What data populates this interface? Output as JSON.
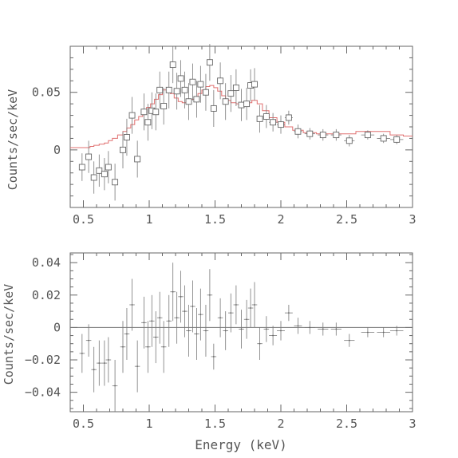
{
  "chart_data": [
    {
      "type": "scatter",
      "panel": "spectrum",
      "xlabel": "",
      "ylabel": "Counts/sec/keV",
      "xlim": [
        0.4,
        3.0
      ],
      "ylim": [
        -0.05,
        0.09
      ],
      "xticks": [
        0.5,
        1,
        1.5,
        2,
        2.5,
        3
      ],
      "xtick_labels": [
        "0.5",
        "1",
        "1.5",
        "2",
        "2.5",
        "3"
      ],
      "yticks": [
        0,
        0.05
      ],
      "ytick_labels": [
        "0",
        "0.05"
      ],
      "points": [
        {
          "x": 0.49,
          "y": -0.015,
          "xerr": 0.02,
          "yerr": 0.012
        },
        {
          "x": 0.54,
          "y": -0.006,
          "xerr": 0.02,
          "yerr": 0.014
        },
        {
          "x": 0.58,
          "y": -0.024,
          "xerr": 0.02,
          "yerr": 0.014
        },
        {
          "x": 0.62,
          "y": -0.018,
          "xerr": 0.02,
          "yerr": 0.014
        },
        {
          "x": 0.66,
          "y": -0.021,
          "xerr": 0.02,
          "yerr": 0.014
        },
        {
          "x": 0.69,
          "y": -0.015,
          "xerr": 0.02,
          "yerr": 0.014
        },
        {
          "x": 0.74,
          "y": -0.028,
          "xerr": 0.02,
          "yerr": 0.016
        },
        {
          "x": 0.8,
          "y": 0.0,
          "xerr": 0.02,
          "yerr": 0.016
        },
        {
          "x": 0.83,
          "y": 0.011,
          "xerr": 0.02,
          "yerr": 0.016
        },
        {
          "x": 0.87,
          "y": 0.03,
          "xerr": 0.02,
          "yerr": 0.016
        },
        {
          "x": 0.91,
          "y": -0.008,
          "xerr": 0.02,
          "yerr": 0.016
        },
        {
          "x": 0.96,
          "y": 0.033,
          "xerr": 0.02,
          "yerr": 0.016
        },
        {
          "x": 0.99,
          "y": 0.024,
          "xerr": 0.02,
          "yerr": 0.016
        },
        {
          "x": 1.02,
          "y": 0.034,
          "xerr": 0.02,
          "yerr": 0.016
        },
        {
          "x": 1.05,
          "y": 0.033,
          "xerr": 0.02,
          "yerr": 0.016
        },
        {
          "x": 1.08,
          "y": 0.052,
          "xerr": 0.02,
          "yerr": 0.016
        },
        {
          "x": 1.11,
          "y": 0.038,
          "xerr": 0.02,
          "yerr": 0.016
        },
        {
          "x": 1.15,
          "y": 0.052,
          "xerr": 0.02,
          "yerr": 0.016
        },
        {
          "x": 1.18,
          "y": 0.074,
          "xerr": 0.02,
          "yerr": 0.016
        },
        {
          "x": 1.21,
          "y": 0.051,
          "xerr": 0.02,
          "yerr": 0.016
        },
        {
          "x": 1.24,
          "y": 0.062,
          "xerr": 0.02,
          "yerr": 0.016
        },
        {
          "x": 1.27,
          "y": 0.052,
          "xerr": 0.02,
          "yerr": 0.016
        },
        {
          "x": 1.3,
          "y": 0.042,
          "xerr": 0.02,
          "yerr": 0.016
        },
        {
          "x": 1.33,
          "y": 0.059,
          "xerr": 0.02,
          "yerr": 0.016
        },
        {
          "x": 1.36,
          "y": 0.044,
          "xerr": 0.02,
          "yerr": 0.016
        },
        {
          "x": 1.39,
          "y": 0.057,
          "xerr": 0.02,
          "yerr": 0.016
        },
        {
          "x": 1.43,
          "y": 0.05,
          "xerr": 0.02,
          "yerr": 0.016
        },
        {
          "x": 1.46,
          "y": 0.076,
          "xerr": 0.02,
          "yerr": 0.016
        },
        {
          "x": 1.49,
          "y": 0.036,
          "xerr": 0.02,
          "yerr": 0.016
        },
        {
          "x": 1.54,
          "y": 0.06,
          "xerr": 0.02,
          "yerr": 0.016
        },
        {
          "x": 1.58,
          "y": 0.042,
          "xerr": 0.02,
          "yerr": 0.016
        },
        {
          "x": 1.62,
          "y": 0.049,
          "xerr": 0.02,
          "yerr": 0.016
        },
        {
          "x": 1.66,
          "y": 0.054,
          "xerr": 0.02,
          "yerr": 0.016
        },
        {
          "x": 1.7,
          "y": 0.039,
          "xerr": 0.02,
          "yerr": 0.014
        },
        {
          "x": 1.74,
          "y": 0.04,
          "xerr": 0.02,
          "yerr": 0.014
        },
        {
          "x": 1.77,
          "y": 0.056,
          "xerr": 0.02,
          "yerr": 0.014
        },
        {
          "x": 1.8,
          "y": 0.057,
          "xerr": 0.02,
          "yerr": 0.014
        },
        {
          "x": 1.84,
          "y": 0.027,
          "xerr": 0.02,
          "yerr": 0.012
        },
        {
          "x": 1.89,
          "y": 0.029,
          "xerr": 0.02,
          "yerr": 0.01
        },
        {
          "x": 1.94,
          "y": 0.024,
          "xerr": 0.03,
          "yerr": 0.008
        },
        {
          "x": 2.0,
          "y": 0.022,
          "xerr": 0.03,
          "yerr": 0.008
        },
        {
          "x": 2.06,
          "y": 0.028,
          "xerr": 0.03,
          "yerr": 0.006
        },
        {
          "x": 2.13,
          "y": 0.016,
          "xerr": 0.03,
          "yerr": 0.006
        },
        {
          "x": 2.22,
          "y": 0.014,
          "xerr": 0.04,
          "yerr": 0.005
        },
        {
          "x": 2.32,
          "y": 0.013,
          "xerr": 0.04,
          "yerr": 0.005
        },
        {
          "x": 2.42,
          "y": 0.013,
          "xerr": 0.04,
          "yerr": 0.005
        },
        {
          "x": 2.52,
          "y": 0.008,
          "xerr": 0.04,
          "yerr": 0.005
        },
        {
          "x": 2.66,
          "y": 0.013,
          "xerr": 0.05,
          "yerr": 0.004
        },
        {
          "x": 2.78,
          "y": 0.01,
          "xerr": 0.05,
          "yerr": 0.004
        },
        {
          "x": 2.88,
          "y": 0.009,
          "xerr": 0.05,
          "yerr": 0.004
        }
      ],
      "model": {
        "color": "#e07070",
        "x": [
          0.4,
          0.55,
          0.58,
          0.62,
          0.66,
          0.69,
          0.72,
          0.76,
          0.8,
          0.83,
          0.86,
          0.89,
          0.92,
          0.95,
          0.98,
          1.01,
          1.04,
          1.07,
          1.1,
          1.13,
          1.16,
          1.19,
          1.22,
          1.25,
          1.28,
          1.31,
          1.34,
          1.37,
          1.4,
          1.43,
          1.46,
          1.49,
          1.52,
          1.55,
          1.58,
          1.62,
          1.66,
          1.7,
          1.74,
          1.78,
          1.82,
          1.86,
          1.91,
          1.97,
          2.03,
          2.09,
          2.17,
          2.27,
          2.37,
          2.47,
          2.57,
          2.72,
          2.83,
          2.93,
          3.0
        ],
        "y": [
          0.002,
          0.003,
          0.004,
          0.005,
          0.006,
          0.008,
          0.01,
          0.013,
          0.016,
          0.019,
          0.022,
          0.026,
          0.029,
          0.033,
          0.037,
          0.04,
          0.044,
          0.048,
          0.052,
          0.053,
          0.049,
          0.045,
          0.042,
          0.041,
          0.042,
          0.044,
          0.046,
          0.049,
          0.052,
          0.055,
          0.056,
          0.054,
          0.051,
          0.047,
          0.043,
          0.041,
          0.04,
          0.04,
          0.041,
          0.043,
          0.04,
          0.034,
          0.028,
          0.024,
          0.02,
          0.017,
          0.015,
          0.014,
          0.014,
          0.014,
          0.016,
          0.016,
          0.013,
          0.012,
          0.012
        ]
      }
    },
    {
      "type": "scatter",
      "panel": "residuals",
      "xlabel": "Energy (keV)",
      "ylabel": "Counts/sec/keV",
      "xlim": [
        0.4,
        3.0
      ],
      "ylim": [
        -0.052,
        0.046
      ],
      "xticks": [
        0.5,
        1,
        1.5,
        2,
        2.5,
        3
      ],
      "xtick_labels": [
        "0.5",
        "1",
        "1.5",
        "2",
        "2.5",
        "3"
      ],
      "yticks": [
        -0.04,
        -0.02,
        0,
        0.02,
        0.04
      ],
      "ytick_labels": [
        "−0.04",
        "−0.02",
        "0",
        "0.02",
        "0.04"
      ],
      "zero_line": true,
      "points": [
        {
          "x": 0.49,
          "y": -0.016,
          "xerr": 0.02,
          "yerr": 0.012
        },
        {
          "x": 0.54,
          "y": -0.008,
          "xerr": 0.02,
          "yerr": 0.01
        },
        {
          "x": 0.58,
          "y": -0.026,
          "xerr": 0.02,
          "yerr": 0.014
        },
        {
          "x": 0.62,
          "y": -0.022,
          "xerr": 0.02,
          "yerr": 0.014
        },
        {
          "x": 0.66,
          "y": -0.022,
          "xerr": 0.02,
          "yerr": 0.014
        },
        {
          "x": 0.69,
          "y": -0.02,
          "xerr": 0.02,
          "yerr": 0.014
        },
        {
          "x": 0.74,
          "y": -0.036,
          "xerr": 0.02,
          "yerr": 0.016
        },
        {
          "x": 0.8,
          "y": -0.012,
          "xerr": 0.02,
          "yerr": 0.016
        },
        {
          "x": 0.83,
          "y": -0.004,
          "xerr": 0.02,
          "yerr": 0.016
        },
        {
          "x": 0.87,
          "y": 0.014,
          "xerr": 0.02,
          "yerr": 0.016
        },
        {
          "x": 0.91,
          "y": -0.024,
          "xerr": 0.02,
          "yerr": 0.016
        },
        {
          "x": 0.96,
          "y": 0.003,
          "xerr": 0.02,
          "yerr": 0.016
        },
        {
          "x": 0.99,
          "y": -0.012,
          "xerr": 0.02,
          "yerr": 0.016
        },
        {
          "x": 1.02,
          "y": 0.004,
          "xerr": 0.02,
          "yerr": 0.016
        },
        {
          "x": 1.05,
          "y": -0.006,
          "xerr": 0.02,
          "yerr": 0.016
        },
        {
          "x": 1.08,
          "y": 0.006,
          "xerr": 0.02,
          "yerr": 0.016
        },
        {
          "x": 1.11,
          "y": -0.012,
          "xerr": 0.02,
          "yerr": 0.016
        },
        {
          "x": 1.15,
          "y": 0.004,
          "xerr": 0.02,
          "yerr": 0.016
        },
        {
          "x": 1.18,
          "y": 0.022,
          "xerr": 0.02,
          "yerr": 0.018
        },
        {
          "x": 1.21,
          "y": 0.006,
          "xerr": 0.02,
          "yerr": 0.016
        },
        {
          "x": 1.24,
          "y": 0.019,
          "xerr": 0.02,
          "yerr": 0.016
        },
        {
          "x": 1.27,
          "y": 0.01,
          "xerr": 0.02,
          "yerr": 0.016
        },
        {
          "x": 1.3,
          "y": -0.002,
          "xerr": 0.02,
          "yerr": 0.016
        },
        {
          "x": 1.33,
          "y": 0.013,
          "xerr": 0.02,
          "yerr": 0.016
        },
        {
          "x": 1.36,
          "y": -0.004,
          "xerr": 0.02,
          "yerr": 0.016
        },
        {
          "x": 1.39,
          "y": 0.008,
          "xerr": 0.02,
          "yerr": 0.016
        },
        {
          "x": 1.43,
          "y": -0.002,
          "xerr": 0.02,
          "yerr": 0.016
        },
        {
          "x": 1.46,
          "y": 0.02,
          "xerr": 0.02,
          "yerr": 0.016
        },
        {
          "x": 1.49,
          "y": -0.018,
          "xerr": 0.02,
          "yerr": 0.008
        },
        {
          "x": 1.54,
          "y": 0.006,
          "xerr": 0.02,
          "yerr": 0.012
        },
        {
          "x": 1.58,
          "y": -0.002,
          "xerr": 0.02,
          "yerr": 0.012
        },
        {
          "x": 1.62,
          "y": 0.009,
          "xerr": 0.02,
          "yerr": 0.012
        },
        {
          "x": 1.66,
          "y": 0.014,
          "xerr": 0.02,
          "yerr": 0.012
        },
        {
          "x": 1.7,
          "y": -0.001,
          "xerr": 0.02,
          "yerr": 0.012
        },
        {
          "x": 1.74,
          "y": 0.005,
          "xerr": 0.02,
          "yerr": 0.012
        },
        {
          "x": 1.77,
          "y": 0.012,
          "xerr": 0.02,
          "yerr": 0.012
        },
        {
          "x": 1.8,
          "y": 0.014,
          "xerr": 0.02,
          "yerr": 0.014
        },
        {
          "x": 1.84,
          "y": -0.01,
          "xerr": 0.02,
          "yerr": 0.01
        },
        {
          "x": 1.89,
          "y": -0.001,
          "xerr": 0.02,
          "yerr": 0.008
        },
        {
          "x": 1.94,
          "y": -0.005,
          "xerr": 0.03,
          "yerr": 0.006
        },
        {
          "x": 2.0,
          "y": -0.002,
          "xerr": 0.03,
          "yerr": 0.006
        },
        {
          "x": 2.06,
          "y": 0.009,
          "xerr": 0.03,
          "yerr": 0.005
        },
        {
          "x": 2.13,
          "y": 0.001,
          "xerr": 0.03,
          "yerr": 0.005
        },
        {
          "x": 2.22,
          "y": 0.0,
          "xerr": 0.04,
          "yerr": 0.004
        },
        {
          "x": 2.32,
          "y": -0.001,
          "xerr": 0.04,
          "yerr": 0.004
        },
        {
          "x": 2.42,
          "y": -0.001,
          "xerr": 0.04,
          "yerr": 0.004
        },
        {
          "x": 2.52,
          "y": -0.008,
          "xerr": 0.04,
          "yerr": 0.004
        },
        {
          "x": 2.66,
          "y": -0.003,
          "xerr": 0.05,
          "yerr": 0.003
        },
        {
          "x": 2.78,
          "y": -0.003,
          "xerr": 0.05,
          "yerr": 0.003
        },
        {
          "x": 2.88,
          "y": -0.002,
          "xerr": 0.05,
          "yerr": 0.003
        }
      ]
    }
  ]
}
